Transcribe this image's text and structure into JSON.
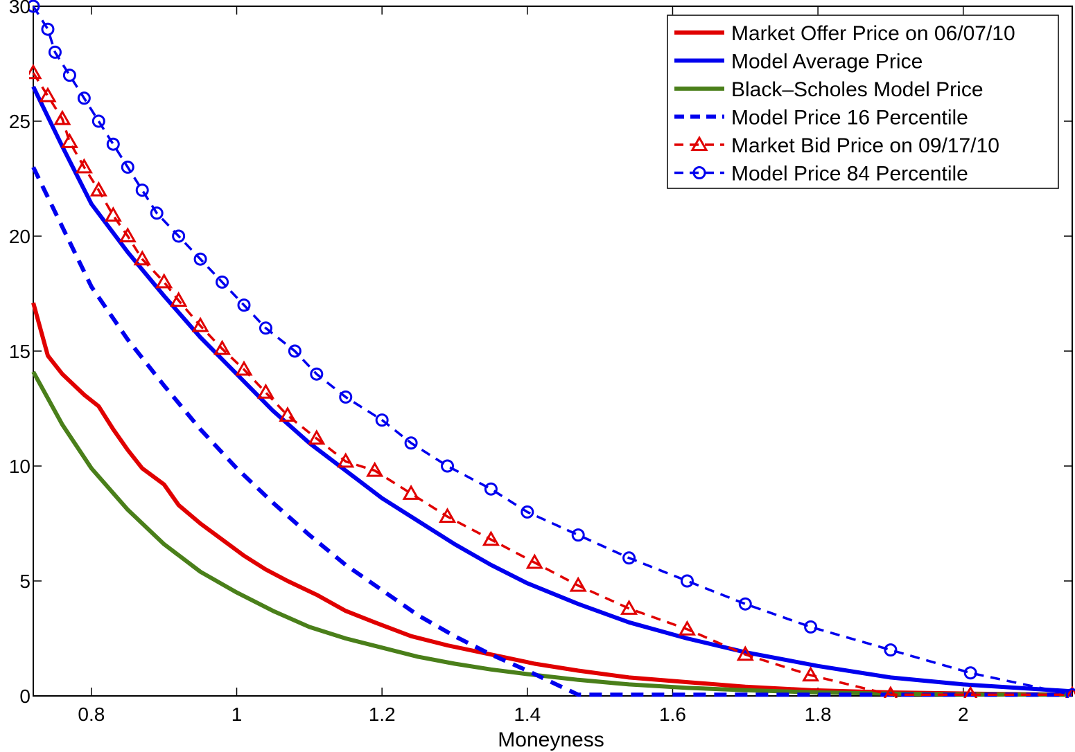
{
  "chart_data": {
    "type": "line",
    "title": "",
    "xlabel": "Moneyness",
    "ylabel": "",
    "xlim": [
      0.72,
      2.15
    ],
    "ylim": [
      0,
      30
    ],
    "xticks": [
      0.8,
      1,
      1.2,
      1.4,
      1.6,
      1.8,
      2
    ],
    "xtick_labels": [
      "0.8",
      "1",
      "1.2",
      "1.4",
      "1.6",
      "1.8",
      "2"
    ],
    "yticks": [
      0,
      5,
      10,
      15,
      20,
      25,
      30
    ],
    "ytick_labels": [
      "0",
      "5",
      "10",
      "15",
      "20",
      "25",
      "30"
    ],
    "grid": false,
    "legend_position": "top-right",
    "series": [
      {
        "name": "Market Offer Price on 06/07/10",
        "color": "#e00000",
        "style": "solid",
        "marker": "none",
        "x": [
          0.72,
          0.74,
          0.76,
          0.79,
          0.81,
          0.83,
          0.85,
          0.87,
          0.9,
          0.92,
          0.95,
          0.98,
          1.01,
          1.04,
          1.07,
          1.11,
          1.15,
          1.19,
          1.24,
          1.29,
          1.35,
          1.41,
          1.47,
          1.54,
          1.62,
          1.7,
          1.79,
          1.9,
          2.01,
          2.15
        ],
        "values": [
          17.1,
          14.8,
          14.0,
          13.1,
          12.6,
          11.6,
          10.7,
          9.9,
          9.2,
          8.3,
          7.5,
          6.8,
          6.1,
          5.5,
          5.0,
          4.4,
          3.7,
          3.2,
          2.6,
          2.2,
          1.8,
          1.4,
          1.1,
          0.8,
          0.6,
          0.4,
          0.25,
          0.15,
          0.1,
          0.05
        ]
      },
      {
        "name": "Model Average Price",
        "color": "#0000ee",
        "style": "solid",
        "marker": "none",
        "x": [
          0.72,
          0.76,
          0.8,
          0.85,
          0.9,
          0.95,
          1.0,
          1.05,
          1.1,
          1.15,
          1.2,
          1.25,
          1.3,
          1.35,
          1.4,
          1.47,
          1.54,
          1.62,
          1.7,
          1.8,
          1.9,
          2.0,
          2.15
        ],
        "values": [
          26.5,
          23.9,
          21.4,
          19.3,
          17.4,
          15.6,
          14.0,
          12.4,
          11.0,
          9.8,
          8.6,
          7.6,
          6.6,
          5.7,
          4.9,
          4.0,
          3.2,
          2.5,
          1.9,
          1.3,
          0.8,
          0.5,
          0.2
        ]
      },
      {
        "name": "Black–Scholes Model Price",
        "color": "#4a7f1a",
        "style": "solid",
        "marker": "none",
        "x": [
          0.72,
          0.76,
          0.8,
          0.85,
          0.9,
          0.95,
          1.0,
          1.05,
          1.1,
          1.15,
          1.2,
          1.25,
          1.3,
          1.35,
          1.4,
          1.47,
          1.54,
          1.62,
          1.7,
          1.8,
          1.9,
          2.0,
          2.15
        ],
        "values": [
          14.1,
          11.8,
          9.9,
          8.1,
          6.6,
          5.4,
          4.5,
          3.7,
          3.0,
          2.5,
          2.1,
          1.7,
          1.4,
          1.15,
          0.95,
          0.7,
          0.5,
          0.35,
          0.25,
          0.15,
          0.1,
          0.07,
          0.05
        ]
      },
      {
        "name": "Model Price 16 Percentile",
        "color": "#0000ee",
        "style": "dashed",
        "marker": "none",
        "x": [
          0.72,
          0.76,
          0.8,
          0.85,
          0.9,
          0.95,
          1.0,
          1.05,
          1.1,
          1.15,
          1.2,
          1.25,
          1.3,
          1.35,
          1.4,
          1.44,
          1.47,
          1.5,
          1.6,
          1.7,
          1.8,
          1.9,
          2.0,
          2.15
        ],
        "values": [
          23.0,
          20.4,
          17.8,
          15.5,
          13.5,
          11.6,
          9.9,
          8.4,
          7.0,
          5.7,
          4.6,
          3.5,
          2.6,
          1.8,
          1.1,
          0.5,
          0.05,
          0.05,
          0.05,
          0.05,
          0.05,
          0.05,
          0.05,
          0.05
        ]
      },
      {
        "name": "Market Bid Price on 09/17/10",
        "color": "#e00000",
        "style": "dashed",
        "marker": "triangle",
        "x": [
          0.72,
          0.74,
          0.76,
          0.77,
          0.79,
          0.81,
          0.83,
          0.85,
          0.87,
          0.9,
          0.92,
          0.95,
          0.98,
          1.01,
          1.04,
          1.07,
          1.11,
          1.15,
          1.19,
          1.24,
          1.29,
          1.35,
          1.41,
          1.47,
          1.54,
          1.62,
          1.7,
          1.79,
          1.9,
          2.01,
          2.15
        ],
        "values": [
          27.1,
          26.1,
          25.1,
          24.1,
          23.0,
          22.0,
          20.9,
          20.0,
          19.0,
          18.0,
          17.2,
          16.1,
          15.1,
          14.2,
          13.2,
          12.2,
          11.2,
          10.2,
          9.8,
          8.8,
          7.8,
          6.8,
          5.8,
          4.8,
          3.8,
          2.9,
          1.8,
          0.9,
          0.05,
          0.05,
          0.05
        ]
      },
      {
        "name": "Model Price 84 Percentile",
        "color": "#0000ee",
        "style": "dashed",
        "marker": "circle",
        "x": [
          0.72,
          0.74,
          0.75,
          0.77,
          0.79,
          0.81,
          0.83,
          0.85,
          0.87,
          0.89,
          0.92,
          0.95,
          0.98,
          1.01,
          1.04,
          1.08,
          1.11,
          1.15,
          1.2,
          1.24,
          1.29,
          1.35,
          1.4,
          1.47,
          1.54,
          1.62,
          1.7,
          1.79,
          1.9,
          2.01,
          2.15
        ],
        "values": [
          30.0,
          29.0,
          28.0,
          27.0,
          26.0,
          25.0,
          24.0,
          23.0,
          22.0,
          21.0,
          20.0,
          19.0,
          18.0,
          17.0,
          16.0,
          15.0,
          14.0,
          13.0,
          12.0,
          11.0,
          10.0,
          9.0,
          8.0,
          7.0,
          6.0,
          5.0,
          4.0,
          3.0,
          2.0,
          1.0,
          0.05
        ]
      }
    ]
  }
}
